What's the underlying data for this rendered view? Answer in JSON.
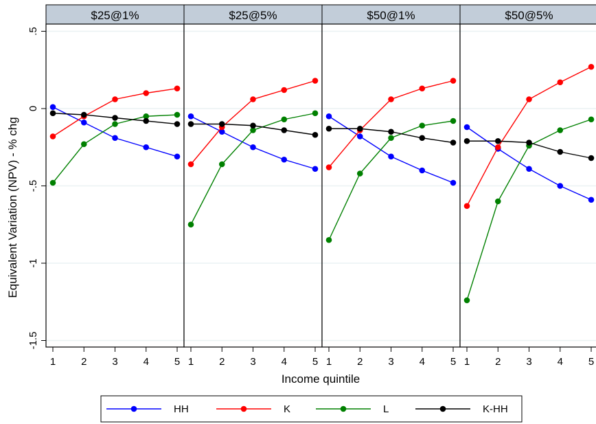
{
  "chart_data": {
    "type": "line",
    "ylabel": "Equivalent Variation (NPV) - % chg",
    "xlabel": "Income quintile",
    "x": [
      1,
      2,
      3,
      4,
      5
    ],
    "ylim": [
      -1.5,
      0.5
    ],
    "yticks": [
      ".5",
      "0",
      "-.5",
      "-1",
      "-1.5"
    ],
    "ytick_values": [
      0.5,
      0,
      -0.5,
      -1,
      -1.5
    ],
    "grid": true,
    "legend_position": "bottom",
    "series_colors": {
      "HH": "#0000ff",
      "K": "#ff0000",
      "L": "#008000",
      "K-HH": "#000000"
    },
    "panel_header_color": "#c2cdd9",
    "panels": [
      {
        "title": "$25@1%",
        "series": [
          {
            "name": "HH",
            "values": [
              0.01,
              -0.09,
              -0.19,
              -0.25,
              -0.31
            ]
          },
          {
            "name": "K",
            "values": [
              -0.18,
              -0.05,
              0.06,
              0.1,
              0.13
            ]
          },
          {
            "name": "L",
            "values": [
              -0.48,
              -0.23,
              -0.1,
              -0.05,
              -0.04
            ]
          },
          {
            "name": "K-HH",
            "values": [
              -0.03,
              -0.04,
              -0.06,
              -0.08,
              -0.1
            ]
          }
        ]
      },
      {
        "title": "$25@5%",
        "series": [
          {
            "name": "HH",
            "values": [
              -0.05,
              -0.15,
              -0.25,
              -0.33,
              -0.39
            ]
          },
          {
            "name": "K",
            "values": [
              -0.36,
              -0.12,
              0.06,
              0.12,
              0.18
            ]
          },
          {
            "name": "L",
            "values": [
              -0.75,
              -0.36,
              -0.14,
              -0.07,
              -0.03
            ]
          },
          {
            "name": "K-HH",
            "values": [
              -0.1,
              -0.1,
              -0.11,
              -0.14,
              -0.17
            ]
          }
        ]
      },
      {
        "title": "$50@1%",
        "series": [
          {
            "name": "HH",
            "values": [
              -0.05,
              -0.18,
              -0.31,
              -0.4,
              -0.48
            ]
          },
          {
            "name": "K",
            "values": [
              -0.38,
              -0.14,
              0.06,
              0.13,
              0.18
            ]
          },
          {
            "name": "L",
            "values": [
              -0.85,
              -0.42,
              -0.19,
              -0.11,
              -0.08
            ]
          },
          {
            "name": "K-HH",
            "values": [
              -0.13,
              -0.13,
              -0.15,
              -0.19,
              -0.22
            ]
          }
        ]
      },
      {
        "title": "$50@5%",
        "series": [
          {
            "name": "HH",
            "values": [
              -0.12,
              -0.26,
              -0.39,
              -0.5,
              -0.59
            ]
          },
          {
            "name": "K",
            "values": [
              -0.63,
              -0.25,
              0.06,
              0.17,
              0.27
            ]
          },
          {
            "name": "L",
            "values": [
              -1.24,
              -0.6,
              -0.24,
              -0.14,
              -0.07
            ]
          },
          {
            "name": "K-HH",
            "values": [
              -0.21,
              -0.21,
              -0.22,
              -0.28,
              -0.32
            ]
          }
        ]
      }
    ],
    "legend": [
      "HH",
      "K",
      "L",
      "K-HH"
    ]
  }
}
